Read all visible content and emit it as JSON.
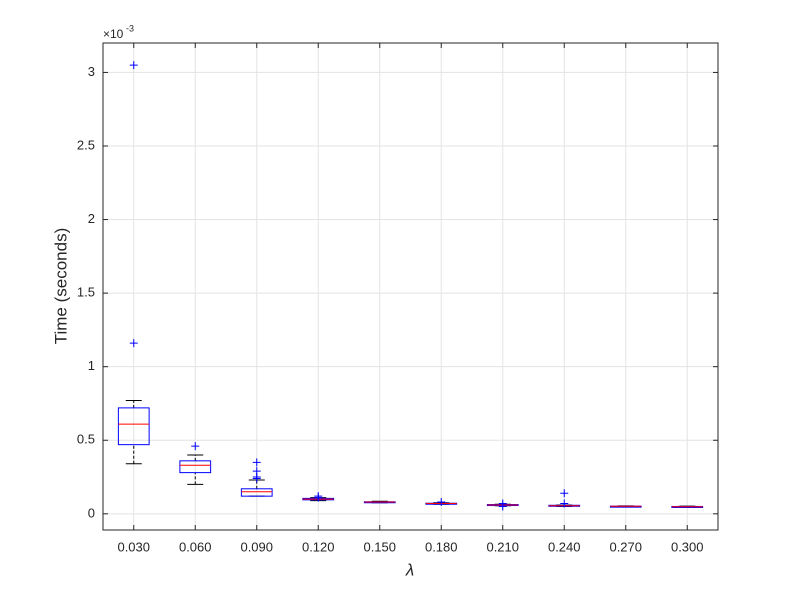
{
  "chart_data": {
    "type": "box",
    "xlabel": "λ",
    "ylabel": "Time (seconds)",
    "y_multiplier": {
      "base": "×10",
      "exponent": "-3"
    },
    "categories": [
      "0.030",
      "0.060",
      "0.090",
      "0.120",
      "0.150",
      "0.180",
      "0.210",
      "0.240",
      "0.270",
      "0.300"
    ],
    "boxes": [
      {
        "min": 0.34,
        "q1": 0.47,
        "median": 0.61,
        "q3": 0.72,
        "max": 0.77,
        "outliers": [
          1.16,
          3.05
        ]
      },
      {
        "min": 0.2,
        "q1": 0.28,
        "median": 0.33,
        "q3": 0.36,
        "max": 0.4,
        "outliers": [
          0.46
        ]
      },
      {
        "min": 0.12,
        "q1": 0.12,
        "median": 0.15,
        "q3": 0.17,
        "max": 0.23,
        "outliers": [
          0.24,
          0.25,
          0.29,
          0.35
        ]
      },
      {
        "min": 0.09,
        "q1": 0.095,
        "median": 0.1,
        "q3": 0.105,
        "max": 0.11,
        "outliers": [
          0.11,
          0.12
        ]
      },
      {
        "min": 0.075,
        "q1": 0.078,
        "median": 0.08,
        "q3": 0.082,
        "max": 0.085,
        "outliers": []
      },
      {
        "min": 0.065,
        "q1": 0.068,
        "median": 0.07,
        "q3": 0.072,
        "max": 0.075,
        "outliers": [
          0.08
        ]
      },
      {
        "min": 0.055,
        "q1": 0.058,
        "median": 0.06,
        "q3": 0.063,
        "max": 0.065,
        "outliers": [
          0.05,
          0.07
        ]
      },
      {
        "min": 0.05,
        "q1": 0.053,
        "median": 0.055,
        "q3": 0.058,
        "max": 0.06,
        "outliers": [
          0.07,
          0.14
        ]
      },
      {
        "min": 0.048,
        "q1": 0.05,
        "median": 0.051,
        "q3": 0.052,
        "max": 0.054,
        "outliers": []
      },
      {
        "min": 0.045,
        "q1": 0.047,
        "median": 0.048,
        "q3": 0.05,
        "max": 0.052,
        "outliers": []
      }
    ],
    "box_color": "#0000ff",
    "median_color": "#ff0000",
    "whisker_color": "#000000",
    "outlier_color": "#0000ff",
    "ylim": [
      -0.11,
      3.2
    ],
    "yticks": [
      0,
      0.5,
      1,
      1.5,
      2,
      2.5,
      3
    ],
    "grid": true
  }
}
